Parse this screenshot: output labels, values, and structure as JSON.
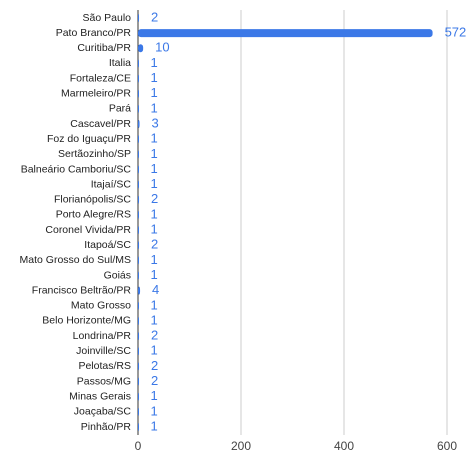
{
  "chart_data": {
    "type": "bar",
    "orientation": "horizontal",
    "categories": [
      "São Paulo",
      "Pato Branco/PR",
      "Curitiba/PR",
      "Italia",
      "Fortaleza/CE",
      "Marmeleiro/PR",
      "Pará",
      "Cascavel/PR",
      "Foz do Iguaçu/PR",
      "Sertãozinho/SP",
      "Balneário Camboriu/SC",
      "Itajaí/SC",
      "Florianópolis/SC",
      "Porto Alegre/RS",
      "Coronel Vivida/PR",
      "Itapoá/SC",
      "Mato Grosso do Sul/MS",
      "Goiás",
      "Francisco Beltrão/PR",
      "Mato Grosso",
      "Belo Horizonte/MG",
      "Londrina/PR",
      "Joinville/SC",
      "Pelotas/RS",
      "Passos/MG",
      "Minas Gerais",
      "Joaçaba/SC",
      "Pinhão/PR"
    ],
    "values": [
      2,
      572,
      10,
      1,
      1,
      1,
      1,
      3,
      1,
      1,
      1,
      1,
      2,
      1,
      1,
      2,
      1,
      1,
      4,
      1,
      1,
      2,
      1,
      2,
      2,
      1,
      1,
      1
    ],
    "color": "#3b78e7",
    "xlim": [
      0,
      600
    ],
    "xticks": [
      0,
      200,
      400,
      600
    ],
    "grid": true
  }
}
